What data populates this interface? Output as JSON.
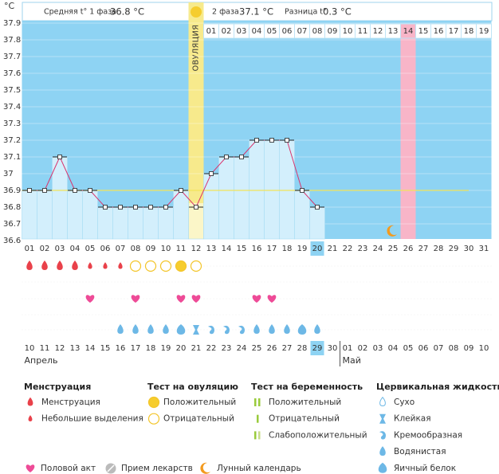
{
  "chart_data": {
    "type": "line",
    "y_label": "°C",
    "header": {
      "phase1_label": "Средняя t° 1 фаза",
      "phase1_value": "36.8 °C",
      "phase2_label": "2 фаза",
      "phase2_value": "37.1 °C",
      "diff_label": "Разница t°",
      "diff_value": "0.3 °C"
    },
    "ylim": [
      36.6,
      37.9
    ],
    "yticks": [
      36.6,
      36.7,
      36.8,
      36.9,
      37,
      37.1,
      37.2,
      37.3,
      37.4,
      37.5,
      37.6,
      37.7,
      37.8,
      37.9
    ],
    "grid": true,
    "categories": [
      "01",
      "02",
      "03",
      "04",
      "05",
      "06",
      "07",
      "08",
      "09",
      "10",
      "11",
      "12",
      "13",
      "14",
      "15",
      "16",
      "17",
      "18",
      "19",
      "20",
      "21",
      "22",
      "23",
      "24",
      "25",
      "26",
      "27",
      "28",
      "29",
      "30",
      "31"
    ],
    "series": [
      {
        "name": "Температура",
        "color": "#d9356e",
        "values": [
          36.9,
          36.9,
          37.1,
          36.9,
          36.9,
          36.8,
          36.8,
          36.8,
          36.8,
          36.8,
          36.9,
          36.8,
          37.0,
          37.1,
          37.1,
          37.2,
          37.2,
          37.2,
          36.9,
          36.8,
          null,
          null,
          null,
          null,
          null,
          null,
          null,
          null,
          null,
          null,
          null
        ]
      }
    ],
    "coverline": {
      "value": 36.9,
      "from": "01",
      "to": "30",
      "color": "#f2e35a"
    },
    "ovulation_day": "12",
    "ovulation_label": "ОВУЛЯЦИЯ",
    "post_ovulation_days": [
      "01",
      "02",
      "03",
      "04",
      "05",
      "06",
      "07",
      "08",
      "09",
      "10",
      "11",
      "12",
      "13",
      "14",
      "15",
      "16",
      "17",
      "18",
      "19"
    ],
    "highlight_post_day": "14",
    "today": "20",
    "moon_day": "25",
    "dates": [
      "10",
      "11",
      "12",
      "13",
      "14",
      "15",
      "16",
      "17",
      "18",
      "19",
      "20",
      "21",
      "22",
      "23",
      "24",
      "25",
      "26",
      "27",
      "28",
      "29",
      "30",
      "01",
      "02",
      "03",
      "04",
      "05",
      "06",
      "07",
      "08",
      "09",
      "10"
    ],
    "date_weekend": [
      false,
      false,
      false,
      true,
      true,
      false,
      false,
      false,
      false,
      false,
      true,
      true,
      false,
      false,
      false,
      false,
      false,
      true,
      true,
      false,
      false,
      false,
      false,
      false,
      true,
      true,
      false,
      false,
      false,
      false,
      false
    ],
    "months": [
      "Апрель",
      "Май"
    ],
    "menstruation": [
      "heavy",
      "heavy",
      "heavy",
      "heavy",
      "light",
      "light",
      "light",
      null,
      null,
      null,
      null,
      null,
      null,
      null,
      null,
      null,
      null,
      null,
      null,
      null,
      null,
      null,
      null,
      null,
      null,
      null,
      null,
      null,
      null,
      null,
      null
    ],
    "ovulation_test": [
      null,
      null,
      null,
      null,
      null,
      null,
      null,
      "negative",
      "negative",
      "negative",
      "positive",
      "negative",
      null,
      null,
      null,
      null,
      null,
      null,
      null,
      null,
      null,
      null,
      null,
      null,
      null,
      null,
      null,
      null,
      null,
      null,
      null
    ],
    "sex": [
      false,
      false,
      false,
      false,
      true,
      false,
      false,
      true,
      false,
      false,
      true,
      true,
      false,
      false,
      false,
      true,
      true,
      false,
      false,
      false,
      false,
      false,
      false,
      false,
      false,
      false,
      false,
      false,
      false,
      false,
      false
    ],
    "fluid": [
      null,
      null,
      null,
      null,
      null,
      null,
      "watery",
      "watery",
      "watery",
      "watery",
      "eggwhite",
      "sticky",
      "creamy",
      "creamy",
      "creamy",
      "watery",
      "watery",
      "watery",
      "eggwhite",
      "watery",
      null,
      null,
      null,
      null,
      null,
      null,
      null,
      null,
      null,
      null,
      null
    ],
    "legend": [
      {
        "title": "Менструация",
        "items": [
          {
            "label": "Менструация",
            "icon": "heavy"
          },
          {
            "label": "Небольшие выделения",
            "icon": "light"
          }
        ]
      },
      {
        "title": "Тест на овуляцию",
        "items": [
          {
            "label": "Положительный",
            "icon": "positive"
          },
          {
            "label": "Отрицательный",
            "icon": "negative"
          }
        ]
      },
      {
        "title": "Тест на беременность",
        "items": [
          {
            "label": "Положительный",
            "icon": "preg-pos"
          },
          {
            "label": "Отрицательный",
            "icon": "preg-neg"
          },
          {
            "label": "Слабоположительный",
            "icon": "preg-weak"
          }
        ]
      },
      {
        "title": "Цервикальная жидкость",
        "items": [
          {
            "label": "Сухо",
            "icon": "dry"
          },
          {
            "label": "Клейкая",
            "icon": "sticky"
          },
          {
            "label": "Кремообразная",
            "icon": "creamy"
          },
          {
            "label": "Водянистая",
            "icon": "watery"
          },
          {
            "label": "Яичный белок",
            "icon": "eggwhite"
          }
        ]
      }
    ],
    "footer_legend": [
      {
        "label": "Половой акт",
        "icon": "heart"
      },
      {
        "label": "Прием лекарств",
        "icon": "pill"
      },
      {
        "label": "Лунный календарь",
        "icon": "moon"
      }
    ]
  }
}
